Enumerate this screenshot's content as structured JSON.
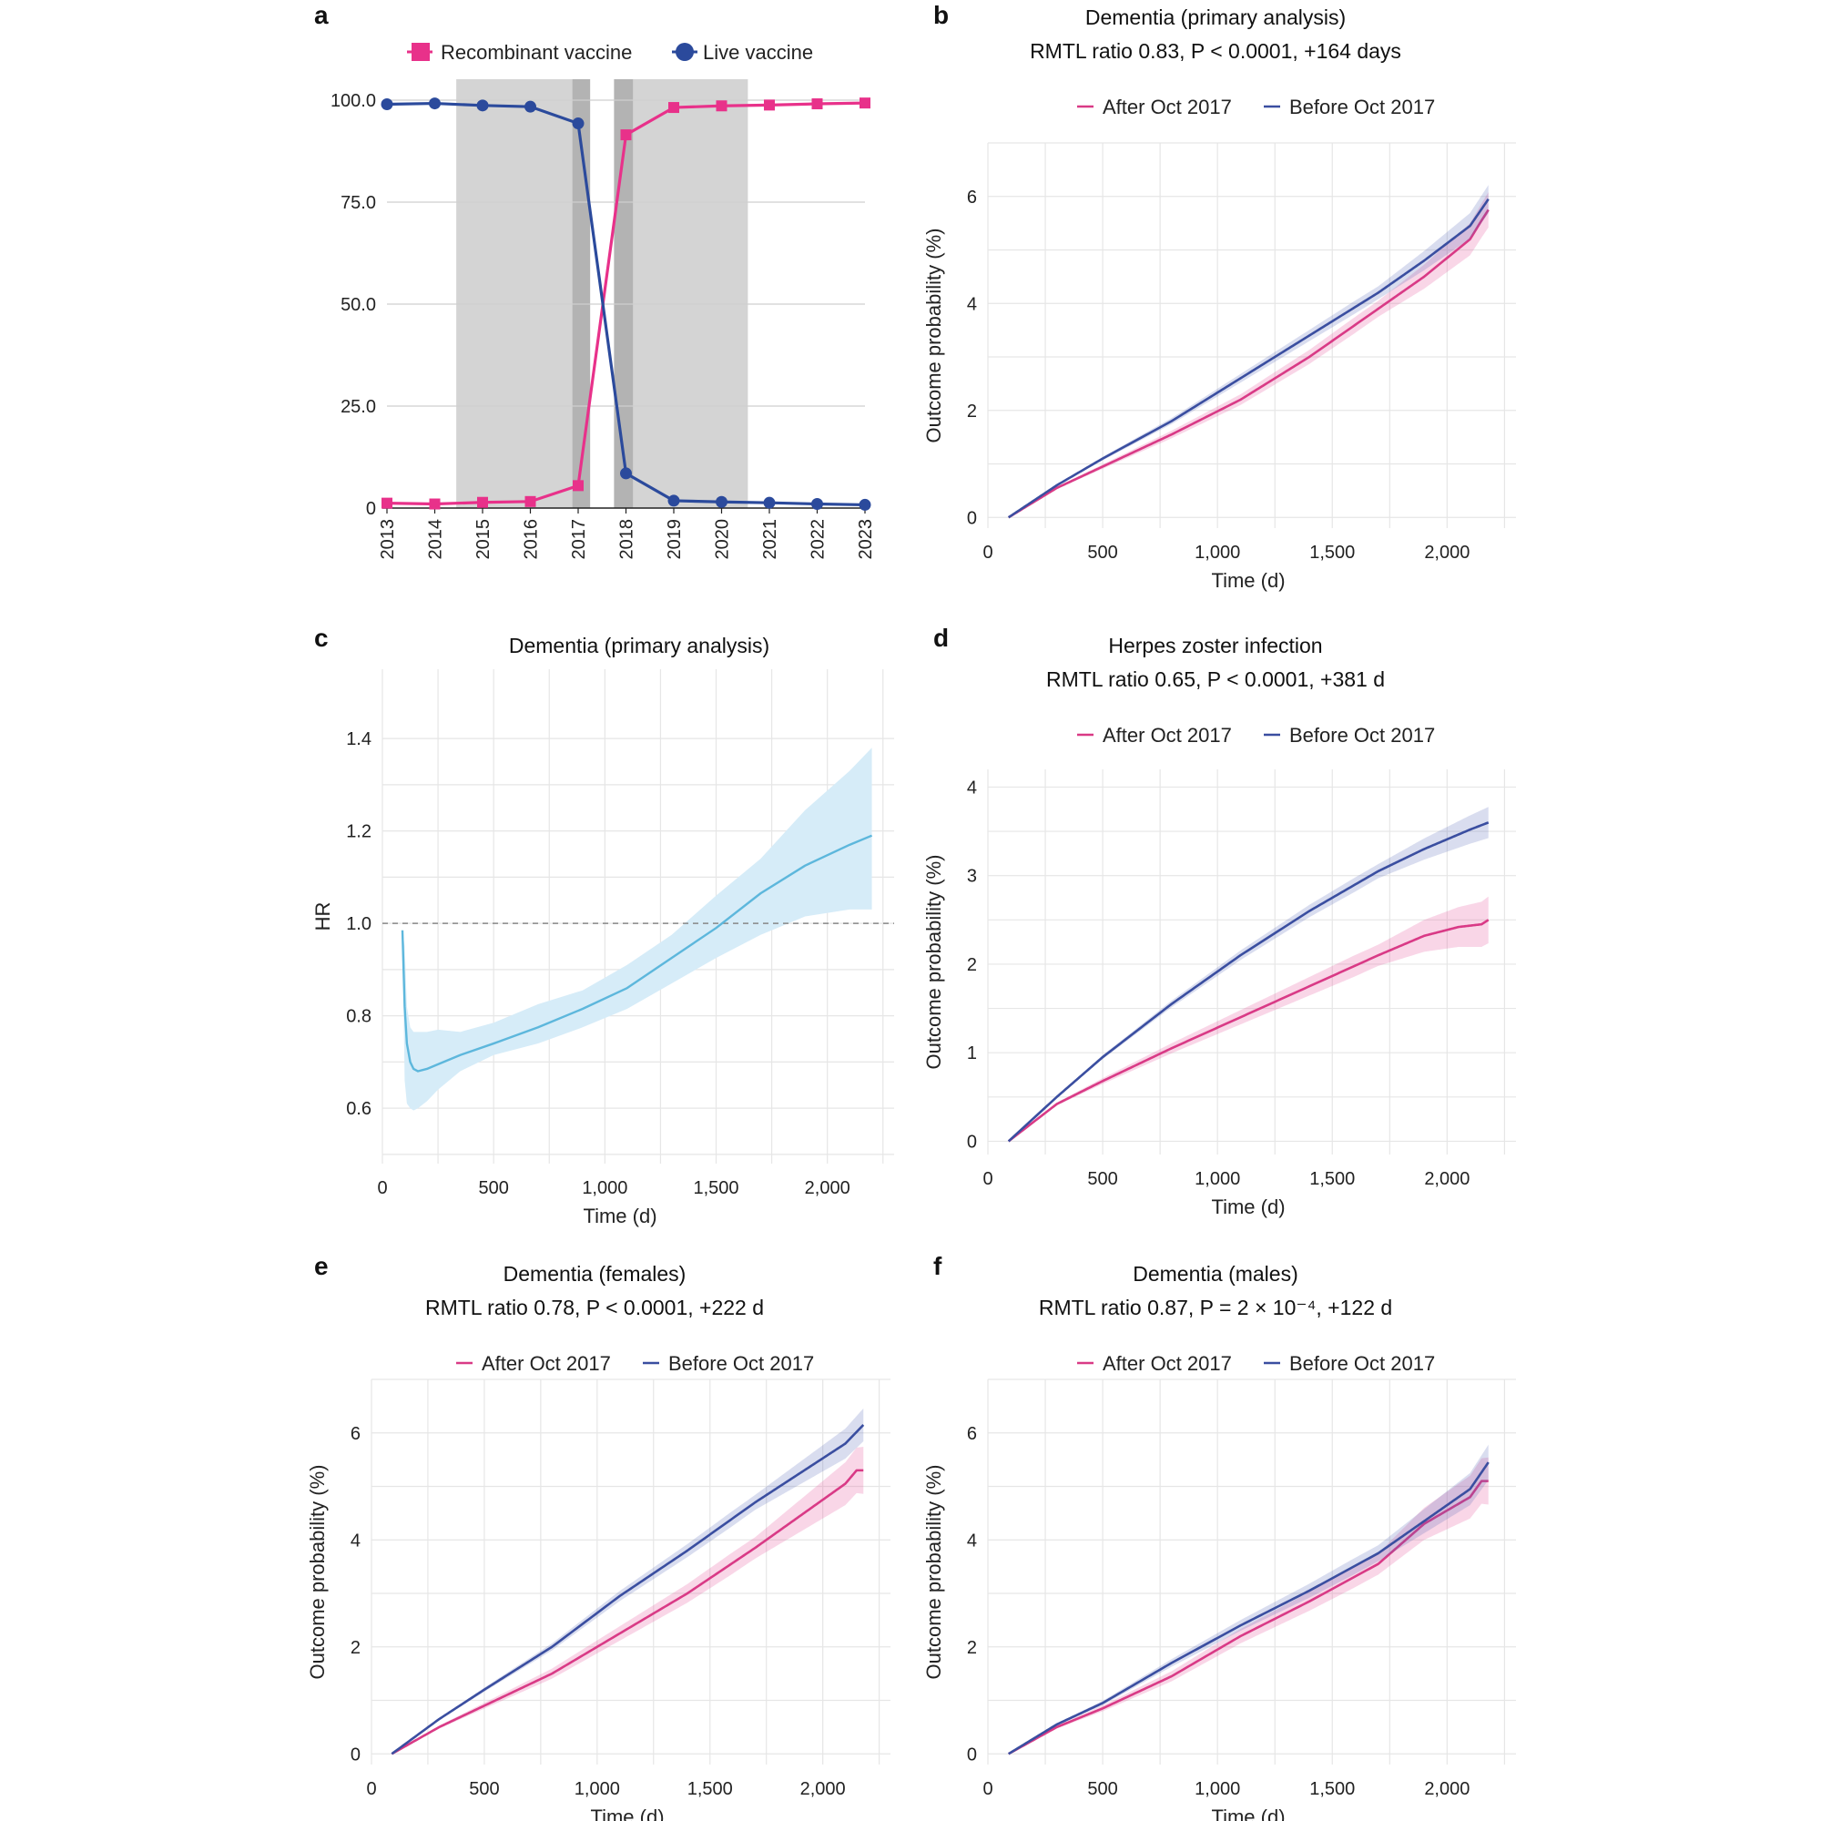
{
  "colors": {
    "recombinant": "#e8318a",
    "live": "#2b4a9c",
    "after": "#d93a86",
    "before": "#3a4ea0",
    "hr_line": "#5db7dc",
    "hr_band": "#d6ecf8",
    "shade_light": "#d4d4d4",
    "shade_dark": "#b3b3b3"
  },
  "chart_data": [
    {
      "id": "a",
      "panel_letter": "a",
      "type": "line",
      "legend": [
        "Recombinant vaccine",
        "Live vaccine"
      ],
      "categories": [
        "2013",
        "2014",
        "2015",
        "2016",
        "2017",
        "2018",
        "2019",
        "2020",
        "2021",
        "2022",
        "2023"
      ],
      "series": [
        {
          "name": "Recombinant vaccine",
          "values": [
            1.2,
            1.0,
            1.4,
            1.6,
            5.5,
            91.5,
            98.2,
            98.6,
            98.8,
            99.1,
            99.3
          ]
        },
        {
          "name": "Live vaccine",
          "values": [
            99.0,
            99.2,
            98.7,
            98.4,
            94.3,
            8.5,
            1.8,
            1.5,
            1.3,
            1.0,
            0.8
          ]
        }
      ],
      "yticks": [
        "100.0",
        "75.0",
        "50.0",
        "25.0",
        "0"
      ],
      "ylim": [
        0,
        100
      ],
      "shaded_periods": [
        {
          "start": 2014.45,
          "end": 2017.25,
          "shade": "light"
        },
        {
          "start": 2016.88,
          "end": 2017.25,
          "shade": "dark"
        },
        {
          "start": 2017.75,
          "end": 2018.15,
          "shade": "dark"
        },
        {
          "start": 2018.15,
          "end": 2020.55,
          "shade": "light"
        }
      ],
      "grid": true
    },
    {
      "id": "b",
      "panel_letter": "b",
      "type": "line",
      "title": "Dementia (primary analysis)",
      "subtitle": "RMTL ratio 0.83, P < 0.0001, +164 days",
      "legend": [
        "After Oct 2017",
        "Before Oct 2017"
      ],
      "xlabel": "Time (d)",
      "ylabel": "Outcome probability (%)",
      "xticks": [
        "0",
        "500",
        "1,000",
        "1,500",
        "2,000"
      ],
      "yticks": [
        "0",
        "2",
        "4",
        "6"
      ],
      "xlim": [
        0,
        2300
      ],
      "ylim": [
        -0.2,
        7.0
      ],
      "series": [
        {
          "name": "After Oct 2017",
          "x": [
            90,
            300,
            500,
            800,
            1100,
            1400,
            1700,
            1900,
            2100,
            2150,
            2180
          ],
          "y": [
            0,
            0.55,
            0.95,
            1.55,
            2.2,
            3.0,
            3.9,
            4.5,
            5.2,
            5.55,
            5.75
          ],
          "band": 0.15
        },
        {
          "name": "Before Oct 2017",
          "x": [
            90,
            300,
            500,
            800,
            1100,
            1400,
            1700,
            1900,
            2100,
            2180
          ],
          "y": [
            0,
            0.6,
            1.1,
            1.8,
            2.6,
            3.4,
            4.2,
            4.8,
            5.45,
            5.95
          ],
          "band": 0.12
        }
      ],
      "grid": true
    },
    {
      "id": "c",
      "panel_letter": "c",
      "type": "line",
      "title": "Dementia (primary analysis)",
      "xlabel": "Time (d)",
      "ylabel": "HR",
      "xticks": [
        "0",
        "500",
        "1,000",
        "1,500",
        "2,000"
      ],
      "yticks": [
        "0.6",
        "0.8",
        "1.0",
        "1.2",
        "1.4"
      ],
      "xlim": [
        0,
        2300
      ],
      "ylim": [
        0.48,
        1.55
      ],
      "reference_line": 1.0,
      "series": [
        {
          "name": "HR",
          "x": [
            90,
            100,
            110,
            125,
            140,
            160,
            200,
            250,
            350,
            500,
            700,
            900,
            1100,
            1300,
            1500,
            1700,
            1900,
            2100,
            2200
          ],
          "y": [
            0.985,
            0.82,
            0.74,
            0.7,
            0.685,
            0.68,
            0.685,
            0.695,
            0.715,
            0.74,
            0.775,
            0.815,
            0.86,
            0.925,
            0.99,
            1.065,
            1.125,
            1.17,
            1.19
          ],
          "lower": [
            0.985,
            0.66,
            0.61,
            0.6,
            0.595,
            0.6,
            0.615,
            0.64,
            0.68,
            0.715,
            0.74,
            0.775,
            0.815,
            0.87,
            0.925,
            0.975,
            1.015,
            1.03,
            1.03
          ],
          "upper": [
            0.985,
            0.95,
            0.82,
            0.775,
            0.765,
            0.765,
            0.765,
            0.77,
            0.765,
            0.785,
            0.825,
            0.855,
            0.91,
            0.975,
            1.06,
            1.14,
            1.245,
            1.33,
            1.38
          ]
        }
      ],
      "grid": true
    },
    {
      "id": "d",
      "panel_letter": "d",
      "type": "line",
      "title": "Herpes zoster infection",
      "subtitle": "RMTL ratio 0.65, P < 0.0001, +381 d",
      "legend": [
        "After Oct 2017",
        "Before Oct 2017"
      ],
      "xlabel": "Time (d)",
      "ylabel": "Outcome probability (%)",
      "xticks": [
        "0",
        "500",
        "1,000",
        "1,500",
        "2,000"
      ],
      "yticks": [
        "0",
        "1",
        "2",
        "3",
        "4"
      ],
      "xlim": [
        0,
        2300
      ],
      "ylim": [
        -0.15,
        4.2
      ],
      "series": [
        {
          "name": "After Oct 2017",
          "x": [
            90,
            300,
            500,
            800,
            1100,
            1400,
            1700,
            1900,
            2050,
            2150,
            2180
          ],
          "y": [
            0,
            0.42,
            0.68,
            1.05,
            1.4,
            1.75,
            2.1,
            2.32,
            2.42,
            2.45,
            2.5
          ],
          "band": 0.12
        },
        {
          "name": "Before Oct 2017",
          "x": [
            90,
            300,
            500,
            800,
            1100,
            1400,
            1700,
            1900,
            2100,
            2180
          ],
          "y": [
            0,
            0.5,
            0.95,
            1.55,
            2.1,
            2.6,
            3.05,
            3.3,
            3.52,
            3.6
          ],
          "band": 0.08
        }
      ],
      "grid": true
    },
    {
      "id": "e",
      "panel_letter": "e",
      "type": "line",
      "title": "Dementia (females)",
      "subtitle": "RMTL ratio 0.78, P < 0.0001, +222 d",
      "legend": [
        "After Oct 2017",
        "Before Oct 2017"
      ],
      "xlabel": "Time (d)",
      "ylabel": "Outcome probability (%)",
      "xticks": [
        "0",
        "500",
        "1,000",
        "1,500",
        "2,000"
      ],
      "yticks": [
        "0",
        "2",
        "4",
        "6"
      ],
      "xlim": [
        0,
        2300
      ],
      "ylim": [
        -0.2,
        7.0
      ],
      "series": [
        {
          "name": "After Oct 2017",
          "x": [
            90,
            300,
            500,
            800,
            1100,
            1400,
            1700,
            1900,
            2100,
            2150,
            2180
          ],
          "y": [
            0,
            0.5,
            0.9,
            1.5,
            2.25,
            3.0,
            3.85,
            4.45,
            5.05,
            5.3,
            5.3
          ],
          "band": 0.2
        },
        {
          "name": "Before Oct 2017",
          "x": [
            90,
            300,
            500,
            800,
            1100,
            1400,
            1700,
            1900,
            2100,
            2180
          ],
          "y": [
            0,
            0.65,
            1.2,
            2.0,
            2.95,
            3.8,
            4.7,
            5.25,
            5.8,
            6.15
          ],
          "band": 0.14
        }
      ],
      "grid": true
    },
    {
      "id": "f",
      "panel_letter": "f",
      "type": "line",
      "title": "Dementia (males)",
      "subtitle": "RMTL ratio 0.87, P = 2 × 10⁻⁴, +122 d",
      "legend": [
        "After Oct 2017",
        "Before Oct 2017"
      ],
      "xlabel": "Time (d)",
      "ylabel": "Outcome probability (%)",
      "xticks": [
        "0",
        "500",
        "1,000",
        "1,500",
        "2,000"
      ],
      "yticks": [
        "0",
        "2",
        "4",
        "6"
      ],
      "xlim": [
        0,
        2300
      ],
      "ylim": [
        -0.2,
        7.0
      ],
      "series": [
        {
          "name": "After Oct 2017",
          "x": [
            90,
            300,
            500,
            800,
            1100,
            1400,
            1700,
            1900,
            2100,
            2150,
            2180
          ],
          "y": [
            0,
            0.5,
            0.85,
            1.45,
            2.2,
            2.85,
            3.55,
            4.3,
            4.8,
            5.1,
            5.1
          ],
          "band": 0.2
        },
        {
          "name": "Before Oct 2017",
          "x": [
            90,
            300,
            500,
            800,
            1100,
            1400,
            1700,
            1900,
            2100,
            2180
          ],
          "y": [
            0,
            0.55,
            0.95,
            1.7,
            2.4,
            3.05,
            3.75,
            4.35,
            4.95,
            5.45
          ],
          "band": 0.15
        }
      ],
      "grid": true
    }
  ]
}
